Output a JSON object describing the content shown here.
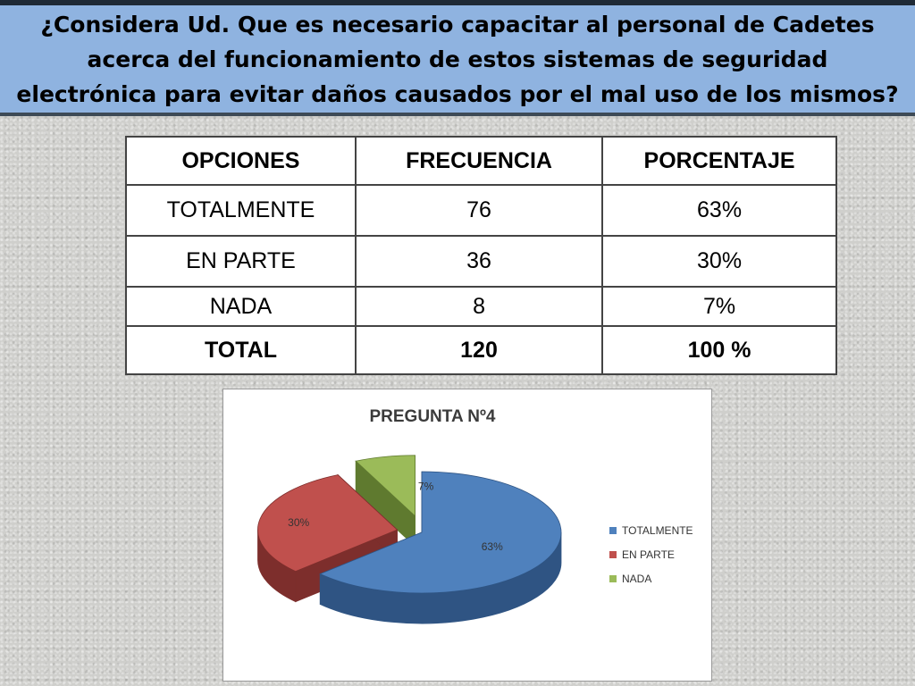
{
  "header": {
    "question": "¿Considera Ud. Que es necesario capacitar al personal de Cadetes acerca del funcionamiento de estos sistemas de seguridad electrónica para evitar daños causados por el mal uso de los mismos?"
  },
  "table": {
    "headers": [
      "OPCIONES",
      "FRECUENCIA",
      "PORCENTAJE"
    ],
    "rows": [
      [
        "TOTALMENTE",
        "76",
        "63%"
      ],
      [
        "EN PARTE",
        "36",
        "30%"
      ],
      [
        "NADA",
        "8",
        "7%"
      ]
    ],
    "total": [
      "TOTAL",
      "120",
      "100 %"
    ]
  },
  "chart_data": {
    "type": "pie",
    "title": "PREGUNTA Nº4",
    "categories": [
      "TOTALMENTE",
      "EN PARTE",
      "NADA"
    ],
    "values": [
      63,
      30,
      7
    ],
    "data_labels": [
      "63%",
      "30%",
      "7%"
    ],
    "colors": [
      "#4f81bd",
      "#c0504d",
      "#9bbb59"
    ],
    "side_colors": [
      "#2f5483",
      "#7d2e2c",
      "#5f7a2f"
    ],
    "style": "3d-exploded",
    "legend": "right"
  }
}
